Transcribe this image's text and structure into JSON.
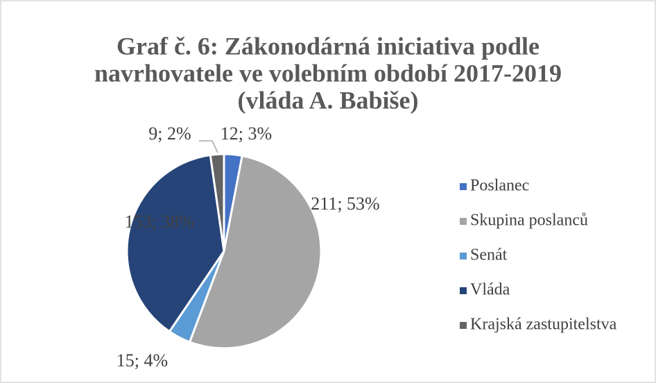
{
  "chart_data": {
    "type": "pie",
    "title": [
      "Graf č. 6: Zákonodárná iniciativa podle",
      "navrhovatele ve volebním období 2017-2019",
      "(vláda A. Babiše)"
    ],
    "categories": [
      "Poslanec",
      "Skupina poslanců",
      "Senát",
      "Vláda",
      "Krajská zastupitelstva"
    ],
    "values": [
      12,
      211,
      15,
      153,
      9
    ],
    "value_labels": [
      "12; 3%",
      "211; 53%",
      "15; 4%",
      "153; 38%",
      "9; 2%"
    ],
    "colors": [
      "#4472c4",
      "#a5a5a5",
      "#5b9bd5",
      "#264478",
      "#636363"
    ],
    "legend": "right"
  }
}
